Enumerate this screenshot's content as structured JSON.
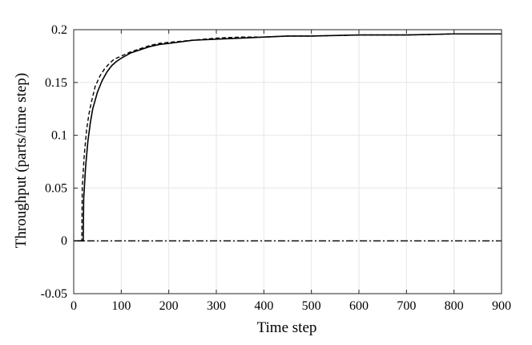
{
  "chart_data": {
    "type": "line",
    "title": "",
    "xlabel": "Time step",
    "ylabel": "Throughput (parts/time step)",
    "xlim": [
      0,
      900
    ],
    "ylim": [
      -0.05,
      0.2
    ],
    "x_ticks": [
      0,
      100,
      200,
      300,
      400,
      500,
      600,
      700,
      800,
      900
    ],
    "y_ticks": [
      -0.05,
      0,
      0.05,
      0.1,
      0.15,
      0.2
    ],
    "x_tick_labels": [
      "0",
      "100",
      "200",
      "300",
      "400",
      "500",
      "600",
      "700",
      "800",
      "900"
    ],
    "y_tick_labels": [
      "-0.05",
      "0",
      "0.05",
      "0.1",
      "0.15",
      "0.2"
    ],
    "grid": true,
    "legend": "none",
    "series": [
      {
        "line_style": "solid",
        "color": "#000000",
        "x": [
          0,
          20,
          21,
          25,
          30,
          35,
          40,
          50,
          60,
          70,
          80,
          90,
          100,
          120,
          140,
          160,
          180,
          200,
          250,
          300,
          350,
          400,
          450,
          500,
          600,
          700,
          800,
          900
        ],
        "y": [
          0,
          0,
          0.04,
          0.07,
          0.095,
          0.112,
          0.125,
          0.141,
          0.152,
          0.16,
          0.166,
          0.17,
          0.173,
          0.178,
          0.181,
          0.184,
          0.186,
          0.187,
          0.19,
          0.191,
          0.192,
          0.193,
          0.194,
          0.194,
          0.195,
          0.195,
          0.196,
          0.196
        ]
      },
      {
        "line_style": "dashed",
        "color": "#000000",
        "x": [
          0,
          17,
          18,
          22,
          27,
          32,
          37,
          45,
          55,
          65,
          75,
          85,
          100,
          120,
          140,
          160,
          180,
          200,
          250,
          300,
          350,
          400,
          450,
          500,
          600,
          700,
          800,
          900
        ],
        "y": [
          0,
          0,
          0.05,
          0.08,
          0.105,
          0.12,
          0.131,
          0.146,
          0.156,
          0.163,
          0.168,
          0.172,
          0.175,
          0.179,
          0.182,
          0.185,
          0.187,
          0.188,
          0.19,
          0.192,
          0.193,
          0.193,
          0.194,
          0.194,
          0.195,
          0.195,
          0.196,
          0.196
        ]
      },
      {
        "line_style": "dash-dot",
        "color": "#000000",
        "x": [
          0,
          900
        ],
        "y": [
          0,
          0
        ]
      }
    ]
  }
}
